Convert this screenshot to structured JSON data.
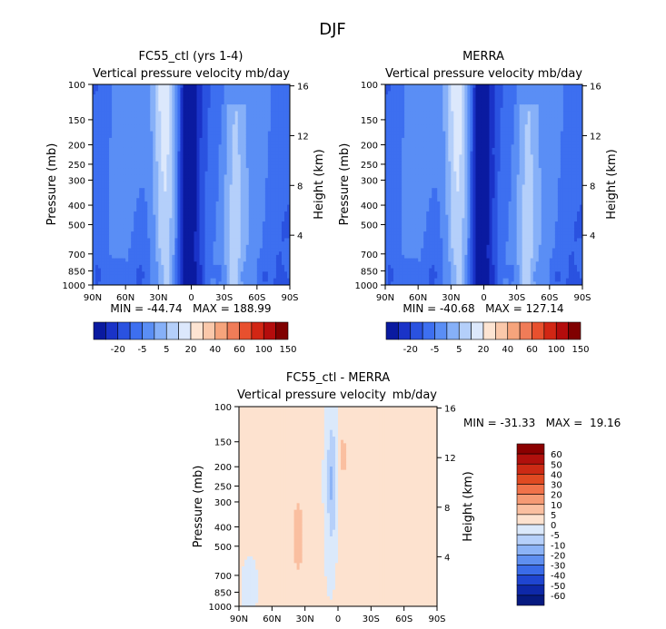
{
  "title": "DJF",
  "colorbar_labels_main": [
    "-20",
    "-5",
    "5",
    "20",
    "40",
    "60",
    "100",
    "150"
  ],
  "colorbar_colors_main": [
    "#0a1aa0",
    "#1a33c8",
    "#2a52e0",
    "#3d6ff0",
    "#5a8ef5",
    "#86b0f8",
    "#b4cffa",
    "#dce8fc",
    "#fde4d2",
    "#fac8aa",
    "#f6a47c",
    "#f07c58",
    "#e8502e",
    "#d22614",
    "#b40c0c",
    "#800000"
  ],
  "colorbar_labels_diff": [
    "60",
    "50",
    "40",
    "30",
    "20",
    "10",
    "5",
    "0",
    "-5",
    "-10",
    "-20",
    "-30",
    "-40",
    "-50",
    "-60"
  ],
  "colorbar_colors_diff": [
    "#8b0000",
    "#b0100c",
    "#cc2a14",
    "#e04a22",
    "#f0724a",
    "#f59a74",
    "#fabfa0",
    "#fde2cf",
    "#dbe9fb",
    "#b6d0fa",
    "#8cb3f6",
    "#5f8ff0",
    "#3a6be8",
    "#1f45d0",
    "#0e28a8",
    "#061a80"
  ],
  "chart_data": [
    {
      "type": "heatmap",
      "title": "FC55_ctl (yrs 1-4)",
      "subtitle": "Vertical pressure velocity",
      "units": "mb/day",
      "xlabel": "",
      "ylabel": "Pressure (mb)",
      "y2label": "Height (km)",
      "x_ticks": [
        "90N",
        "60N",
        "30N",
        "0",
        "30S",
        "60S",
        "90S"
      ],
      "y_ticks": [
        "100",
        "150",
        "200",
        "250",
        "300",
        "400",
        "500",
        "700",
        "850",
        "1000"
      ],
      "y2_ticks": [
        "4",
        "8",
        "12",
        "16"
      ],
      "stats": "MIN = -44.74   MAX = 188.99",
      "min": -44.74,
      "max": 188.99
    },
    {
      "type": "heatmap",
      "title": "MERRA",
      "subtitle": "Vertical pressure velocity",
      "units": "mb/day",
      "xlabel": "",
      "ylabel": "Pressure (mb)",
      "y2label": "Height (km)",
      "x_ticks": [
        "90N",
        "60N",
        "30N",
        "0",
        "30S",
        "60S",
        "90S"
      ],
      "y_ticks": [
        "100",
        "150",
        "200",
        "250",
        "300",
        "400",
        "500",
        "700",
        "850",
        "1000"
      ],
      "y2_ticks": [
        "4",
        "8",
        "12",
        "16"
      ],
      "stats": "MIN = -40.68   MAX = 127.14",
      "min": -40.68,
      "max": 127.14
    },
    {
      "type": "heatmap",
      "title": "FC55_ctl - MERRA",
      "subtitle": "Vertical pressure velocity",
      "units": "mb/day",
      "xlabel": "",
      "ylabel": "Pressure (mb)",
      "y2label": "Height (km)",
      "x_ticks": [
        "90N",
        "60N",
        "30N",
        "0",
        "30S",
        "60S",
        "90S"
      ],
      "y_ticks": [
        "100",
        "150",
        "200",
        "250",
        "300",
        "400",
        "500",
        "700",
        "850",
        "1000"
      ],
      "y2_ticks": [
        "4",
        "8",
        "12",
        "16"
      ],
      "stats": "MIN = -31.33   MAX =  19.16",
      "min": -31.33,
      "max": 19.16
    }
  ]
}
